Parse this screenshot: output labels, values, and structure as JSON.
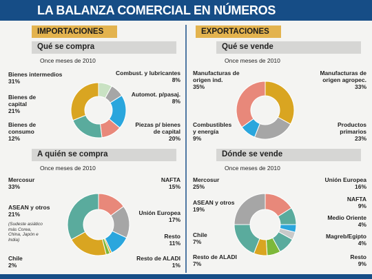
{
  "title": "LA BALANZA COMERCIAL EN NÚMEROS",
  "sections": [
    "IMPORTACIONES",
    "EXPORTACIONES"
  ],
  "chart_data": [
    {
      "type": "donut",
      "title": "Qué se compra",
      "subtitle": "Once meses de 2010",
      "categories": [
        "Combust. y lubricantes",
        "Automot. p/pasaj.",
        "Piezas p/ bienes de capital",
        "Bienes de consumo",
        "Bienes de capital",
        "Bienes intermedios"
      ],
      "values": [
        8,
        8,
        20,
        12,
        21,
        31
      ],
      "value_labels": [
        "8%",
        "8%",
        "20%",
        "12%",
        "21%",
        "31%"
      ],
      "colors": [
        "#c9e2c3",
        "#a6a6a6",
        "#2aa6dd",
        "#e8887a",
        "#5aab9d",
        "#d9a521"
      ]
    },
    {
      "type": "donut",
      "title": "Qué se vende",
      "subtitle": "Once meses de 2010",
      "categories": [
        "Manufacturas de origen agropec.",
        "Productos primarios",
        "Combustibles y energía",
        "Manufacturas de origen ind."
      ],
      "values": [
        33,
        23,
        9,
        35
      ],
      "value_labels": [
        "33%",
        "23%",
        "9%",
        "35%"
      ],
      "colors": [
        "#d9a521",
        "#a6a6a6",
        "#2aa6dd",
        "#e8887a"
      ]
    },
    {
      "type": "donut",
      "title": "A quién se compra",
      "subtitle": "Once meses de 2010",
      "categories": [
        "NAFTA",
        "Unión Europea",
        "Resto",
        "Resto de ALADI",
        "Chile",
        "ASEAN y otros",
        "Mercosur"
      ],
      "values": [
        15,
        17,
        11,
        1,
        2,
        21,
        33
      ],
      "value_labels": [
        "15%",
        "17%",
        "11%",
        "1%",
        "2%",
        "21%",
        "33%"
      ],
      "colors": [
        "#e8887a",
        "#a6a6a6",
        "#2aa6dd",
        "#d9a521",
        "#7db83a",
        "#d9a521",
        "#5aab9d"
      ],
      "note": "(Sudeste asiático más Corea, China, Japón e India)"
    },
    {
      "type": "donut",
      "title": "Dónde se vende",
      "subtitle": "Once meses de 2010",
      "categories": [
        "Unión Europea",
        "NAFTA",
        "Medio Oriente",
        "Magreb/Egipto",
        "Resto",
        "Resto de ALADI",
        "Chile",
        "ASEAN y otros",
        "Mercosur"
      ],
      "values": [
        16,
        9,
        4,
        4,
        9,
        7,
        7,
        19,
        25
      ],
      "value_labels": [
        "16%",
        "9%",
        "4%",
        "4%",
        "9%",
        "7%",
        "7%",
        "19%",
        "25%"
      ],
      "colors": [
        "#e8887a",
        "#5aab9d",
        "#2aa6dd",
        "#c9c9c9",
        "#5aab9d",
        "#7db83a",
        "#d9a521",
        "#5aab9d",
        "#a6a6a6"
      ]
    }
  ]
}
